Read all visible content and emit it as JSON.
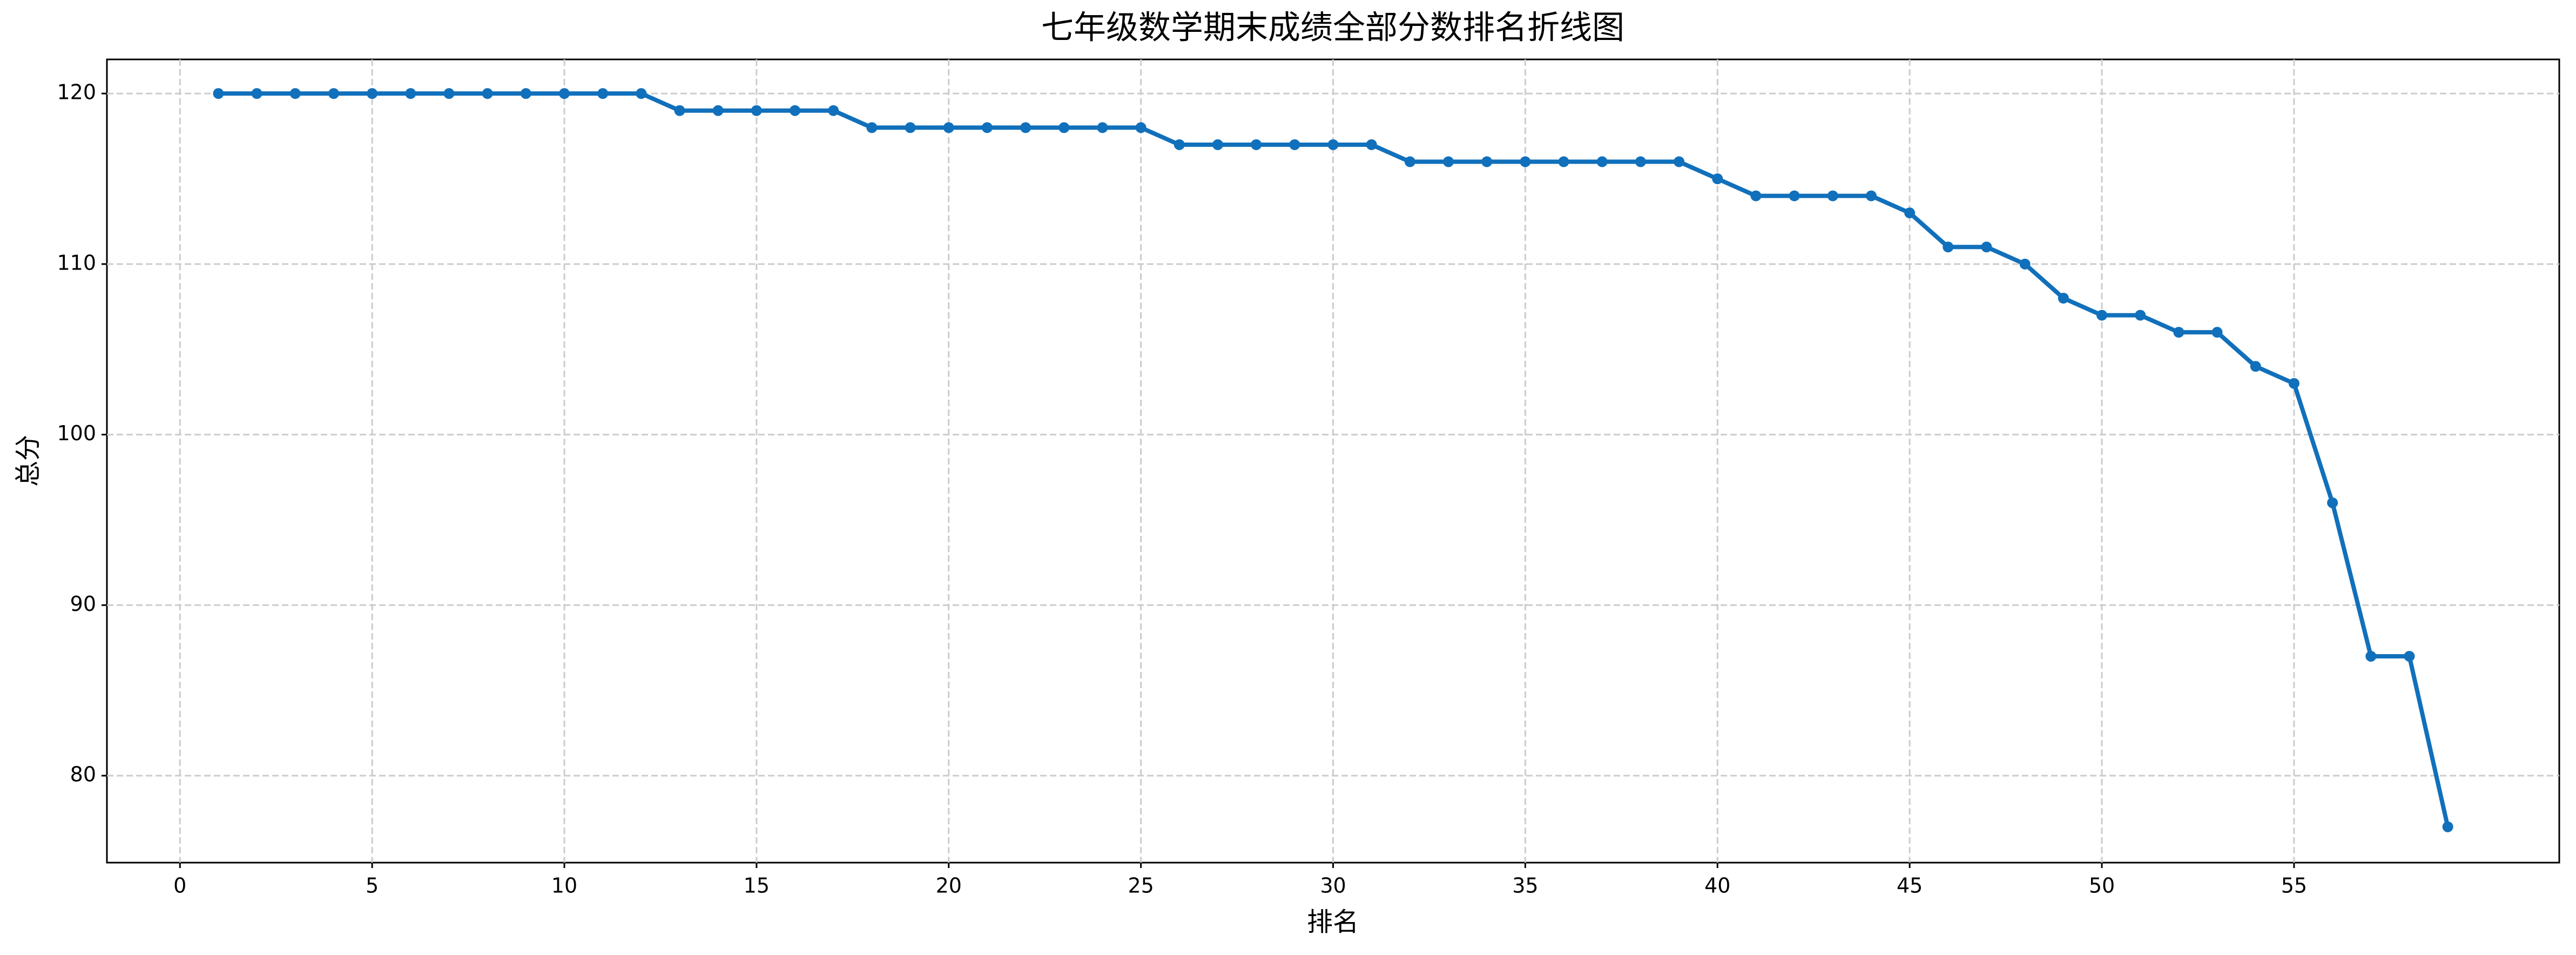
{
  "chart_data": {
    "type": "line",
    "title": "七年级数学期末成绩全部分数排名折线图",
    "xlabel": "排名",
    "ylabel": "总分",
    "x": [
      1,
      2,
      3,
      4,
      5,
      6,
      7,
      8,
      9,
      10,
      11,
      12,
      13,
      14,
      15,
      16,
      17,
      18,
      19,
      20,
      21,
      22,
      23,
      24,
      25,
      26,
      27,
      28,
      29,
      30,
      31,
      32,
      33,
      34,
      35,
      36,
      37,
      38,
      39,
      40,
      41,
      42,
      43,
      44,
      45,
      46,
      47,
      48,
      49,
      50,
      51,
      52,
      53,
      54,
      55,
      56,
      57,
      58,
      59
    ],
    "series": [
      {
        "name": "总分",
        "color": "#1170bb",
        "values": [
          120,
          120,
          120,
          120,
          120,
          120,
          120,
          120,
          120,
          120,
          120,
          120,
          119,
          119,
          119,
          119,
          119,
          118,
          118,
          118,
          118,
          118,
          118,
          118,
          118,
          117,
          117,
          117,
          117,
          117,
          117,
          116,
          116,
          116,
          116,
          116,
          116,
          116,
          116,
          115,
          114,
          114,
          114,
          114,
          113,
          111,
          111,
          110,
          108,
          107,
          107,
          106,
          106,
          104,
          103,
          96,
          87,
          87,
          77
        ]
      }
    ],
    "xlim": [
      -1.9,
      61.9
    ],
    "ylim": [
      74.9,
      122.0
    ],
    "xticks": [
      0,
      5,
      10,
      15,
      20,
      25,
      30,
      35,
      40,
      45,
      50,
      55
    ],
    "yticks": [
      80,
      90,
      100,
      110,
      120
    ],
    "grid": true
  }
}
